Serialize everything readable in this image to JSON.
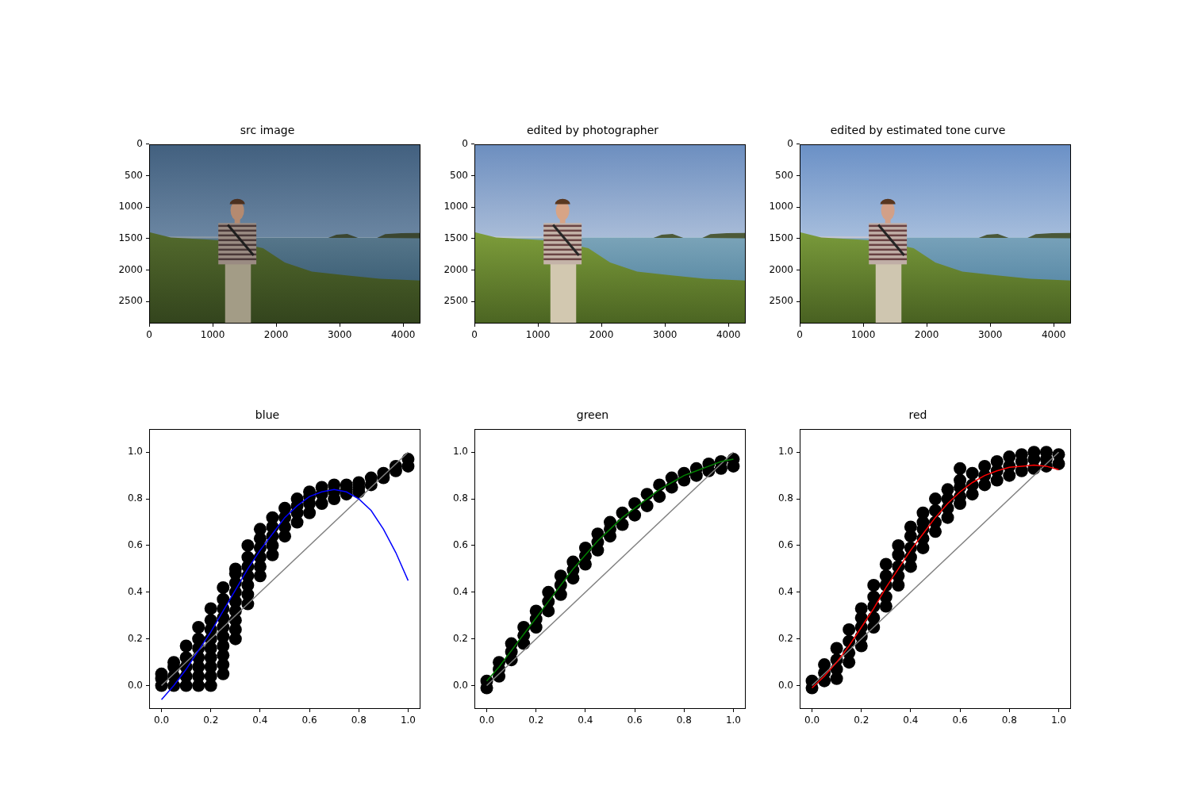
{
  "chart_data": [
    {
      "type": "image",
      "title": "src image",
      "xlim": [
        0,
        4272
      ],
      "ylim": [
        2848,
        0
      ],
      "xticks": [
        0,
        1000,
        2000,
        3000,
        4000
      ],
      "yticks": [
        0,
        500,
        1000,
        1500,
        2000,
        2500
      ],
      "grid": false
    },
    {
      "type": "image",
      "title": "edited by photographer",
      "xlim": [
        0,
        4272
      ],
      "ylim": [
        2848,
        0
      ],
      "xticks": [
        0,
        1000,
        2000,
        3000,
        4000
      ],
      "yticks": [
        0,
        500,
        1000,
        1500,
        2000,
        2500
      ],
      "grid": false
    },
    {
      "type": "image",
      "title": "edited by estimated tone curve",
      "xlim": [
        0,
        4272
      ],
      "ylim": [
        2848,
        0
      ],
      "xticks": [
        0,
        1000,
        2000,
        3000,
        4000
      ],
      "yticks": [
        0,
        500,
        1000,
        1500,
        2000,
        2500
      ],
      "grid": false
    },
    {
      "type": "scatter",
      "title": "blue",
      "xlim": [
        -0.05,
        1.05
      ],
      "ylim": [
        -0.1,
        1.1
      ],
      "xticks": [
        {
          "value": 0,
          "label": "0.0"
        },
        0.2,
        0.4,
        0.6,
        0.8,
        {
          "value": 1,
          "label": "1.0"
        }
      ],
      "yticks": [
        {
          "value": 0,
          "label": "0.0"
        },
        0.2,
        0.4,
        0.6,
        0.8,
        {
          "value": 1,
          "label": "1.0"
        }
      ],
      "grid": false,
      "series": [
        {
          "type": "line",
          "color": "#0000ff",
          "line_style": "solid",
          "x": [
            0,
            0.05,
            0.1,
            0.15,
            0.2,
            0.25,
            0.3,
            0.35,
            0.4,
            0.45,
            0.5,
            0.55,
            0.6,
            0.65,
            0.7,
            0.75,
            0.8,
            0.85,
            0.9,
            0.95,
            1
          ],
          "values": [
            -0.06,
            0.0,
            0.07,
            0.15,
            0.23,
            0.32,
            0.41,
            0.5,
            0.58,
            0.65,
            0.72,
            0.77,
            0.81,
            0.83,
            0.84,
            0.83,
            0.8,
            0.75,
            0.67,
            0.57,
            0.45
          ]
        },
        {
          "type": "line",
          "color": "#808080",
          "line_style": "solid",
          "x": [
            0,
            1
          ],
          "values": [
            0,
            1
          ]
        },
        {
          "type": "scatter",
          "color": "#000000",
          "marker": "circle",
          "x": [
            0,
            0,
            0,
            0.05,
            0.05,
            0.05,
            0.05,
            0.1,
            0.1,
            0.1,
            0.1,
            0.1,
            0.15,
            0.15,
            0.15,
            0.15,
            0.15,
            0.15,
            0.15,
            0.2,
            0.2,
            0.2,
            0.2,
            0.2,
            0.2,
            0.2,
            0.2,
            0.2,
            0.25,
            0.25,
            0.25,
            0.25,
            0.25,
            0.25,
            0.25,
            0.25,
            0.25,
            0.25,
            0.3,
            0.3,
            0.3,
            0.3,
            0.3,
            0.3,
            0.3,
            0.3,
            0.3,
            0.35,
            0.35,
            0.35,
            0.35,
            0.35,
            0.35,
            0.35,
            0.4,
            0.4,
            0.4,
            0.4,
            0.4,
            0.4,
            0.45,
            0.45,
            0.45,
            0.45,
            0.45,
            0.5,
            0.5,
            0.5,
            0.5,
            0.55,
            0.55,
            0.55,
            0.55,
            0.6,
            0.6,
            0.6,
            0.6,
            0.65,
            0.65,
            0.65,
            0.7,
            0.7,
            0.7,
            0.75,
            0.75,
            0.75,
            0.8,
            0.8,
            0.8,
            0.85,
            0.85,
            0.9,
            0.9,
            0.95,
            0.95,
            1,
            1
          ],
          "values": [
            0,
            0.03,
            0.05,
            0,
            0.04,
            0.08,
            0.1,
            0,
            0.04,
            0.08,
            0.12,
            0.17,
            0,
            0.04,
            0.08,
            0.12,
            0.16,
            0.2,
            0.25,
            0,
            0.04,
            0.08,
            0.12,
            0.16,
            0.2,
            0.24,
            0.28,
            0.33,
            0.05,
            0.09,
            0.13,
            0.17,
            0.21,
            0.25,
            0.29,
            0.33,
            0.37,
            0.42,
            0.2,
            0.24,
            0.28,
            0.32,
            0.36,
            0.4,
            0.44,
            0.48,
            0.5,
            0.35,
            0.39,
            0.43,
            0.47,
            0.51,
            0.55,
            0.6,
            0.47,
            0.51,
            0.55,
            0.59,
            0.63,
            0.67,
            0.56,
            0.6,
            0.64,
            0.68,
            0.72,
            0.64,
            0.68,
            0.72,
            0.76,
            0.7,
            0.74,
            0.77,
            0.8,
            0.74,
            0.78,
            0.81,
            0.83,
            0.78,
            0.82,
            0.85,
            0.8,
            0.83,
            0.86,
            0.82,
            0.84,
            0.86,
            0.83,
            0.85,
            0.87,
            0.86,
            0.89,
            0.89,
            0.91,
            0.92,
            0.94,
            0.94,
            0.97
          ]
        }
      ]
    },
    {
      "type": "scatter",
      "title": "green",
      "xlim": [
        -0.05,
        1.05
      ],
      "ylim": [
        -0.1,
        1.1
      ],
      "xticks": [
        {
          "value": 0,
          "label": "0.0"
        },
        0.2,
        0.4,
        0.6,
        0.8,
        {
          "value": 1,
          "label": "1.0"
        }
      ],
      "yticks": [
        {
          "value": 0,
          "label": "0.0"
        },
        0.2,
        0.4,
        0.6,
        0.8,
        {
          "value": 1,
          "label": "1.0"
        }
      ],
      "grid": false,
      "series": [
        {
          "type": "line",
          "color": "#008000",
          "line_style": "solid",
          "x": [
            0,
            0.05,
            0.1,
            0.15,
            0.2,
            0.25,
            0.3,
            0.35,
            0.4,
            0.45,
            0.5,
            0.55,
            0.6,
            0.65,
            0.7,
            0.75,
            0.8,
            0.85,
            0.9,
            0.95,
            1
          ],
          "values": [
            0.02,
            0.08,
            0.15,
            0.22,
            0.29,
            0.36,
            0.43,
            0.5,
            0.56,
            0.62,
            0.67,
            0.72,
            0.76,
            0.8,
            0.84,
            0.87,
            0.9,
            0.92,
            0.94,
            0.96,
            0.97
          ]
        },
        {
          "type": "line",
          "color": "#808080",
          "line_style": "solid",
          "x": [
            0,
            1
          ],
          "values": [
            0,
            1
          ]
        },
        {
          "type": "scatter",
          "color": "#000000",
          "marker": "circle",
          "x": [
            0,
            0,
            0.05,
            0.05,
            0.05,
            0.1,
            0.1,
            0.1,
            0.15,
            0.15,
            0.15,
            0.2,
            0.2,
            0.2,
            0.25,
            0.25,
            0.25,
            0.3,
            0.3,
            0.3,
            0.35,
            0.35,
            0.35,
            0.4,
            0.4,
            0.4,
            0.45,
            0.45,
            0.45,
            0.5,
            0.5,
            0.5,
            0.55,
            0.55,
            0.6,
            0.6,
            0.65,
            0.65,
            0.7,
            0.7,
            0.75,
            0.75,
            0.8,
            0.8,
            0.85,
            0.85,
            0.9,
            0.9,
            0.95,
            0.95,
            1,
            1
          ],
          "values": [
            -0.01,
            0.02,
            0.04,
            0.07,
            0.1,
            0.11,
            0.145,
            0.18,
            0.18,
            0.215,
            0.25,
            0.25,
            0.285,
            0.32,
            0.32,
            0.36,
            0.4,
            0.39,
            0.43,
            0.47,
            0.46,
            0.495,
            0.53,
            0.52,
            0.555,
            0.59,
            0.58,
            0.615,
            0.65,
            0.64,
            0.67,
            0.7,
            0.69,
            0.74,
            0.73,
            0.78,
            0.77,
            0.82,
            0.81,
            0.86,
            0.85,
            0.89,
            0.88,
            0.91,
            0.9,
            0.93,
            0.92,
            0.95,
            0.93,
            0.96,
            0.94,
            0.97
          ]
        }
      ]
    },
    {
      "type": "scatter",
      "title": "red",
      "xlim": [
        -0.05,
        1.05
      ],
      "ylim": [
        -0.1,
        1.1
      ],
      "xticks": [
        {
          "value": 0,
          "label": "0.0"
        },
        0.2,
        0.4,
        0.6,
        0.8,
        {
          "value": 1,
          "label": "1.0"
        }
      ],
      "yticks": [
        {
          "value": 0,
          "label": "0.0"
        },
        0.2,
        0.4,
        0.6,
        0.8,
        {
          "value": 1,
          "label": "1.0"
        }
      ],
      "grid": false,
      "series": [
        {
          "type": "line",
          "color": "#ff0000",
          "line_style": "solid",
          "x": [
            0,
            0.05,
            0.1,
            0.15,
            0.2,
            0.25,
            0.3,
            0.35,
            0.4,
            0.45,
            0.5,
            0.55,
            0.6,
            0.65,
            0.7,
            0.75,
            0.8,
            0.85,
            0.9,
            0.95,
            1
          ],
          "values": [
            -0.01,
            0.04,
            0.1,
            0.17,
            0.25,
            0.33,
            0.42,
            0.5,
            0.58,
            0.65,
            0.72,
            0.78,
            0.83,
            0.87,
            0.9,
            0.92,
            0.935,
            0.94,
            0.945,
            0.94,
            0.925
          ]
        },
        {
          "type": "line",
          "color": "#808080",
          "line_style": "solid",
          "x": [
            0,
            1
          ],
          "values": [
            0,
            1
          ]
        },
        {
          "type": "scatter",
          "color": "#000000",
          "marker": "circle",
          "x": [
            0,
            0,
            0.05,
            0.05,
            0.05,
            0.1,
            0.1,
            0.1,
            0.1,
            0.15,
            0.15,
            0.15,
            0.15,
            0.2,
            0.2,
            0.2,
            0.2,
            0.2,
            0.25,
            0.25,
            0.25,
            0.25,
            0.25,
            0.3,
            0.3,
            0.3,
            0.3,
            0.3,
            0.35,
            0.35,
            0.35,
            0.35,
            0.35,
            0.4,
            0.4,
            0.4,
            0.4,
            0.4,
            0.45,
            0.45,
            0.45,
            0.45,
            0.45,
            0.5,
            0.5,
            0.5,
            0.5,
            0.55,
            0.55,
            0.55,
            0.55,
            0.6,
            0.6,
            0.6,
            0.6,
            0.6,
            0.65,
            0.65,
            0.65,
            0.7,
            0.7,
            0.7,
            0.75,
            0.75,
            0.75,
            0.8,
            0.8,
            0.8,
            0.85,
            0.85,
            0.85,
            0.9,
            0.9,
            0.9,
            0.95,
            0.95,
            0.95,
            1,
            1
          ],
          "values": [
            -0.01,
            0.02,
            0.02,
            0.055,
            0.09,
            0.03,
            0.07,
            0.11,
            0.16,
            0.1,
            0.14,
            0.19,
            0.24,
            0.17,
            0.21,
            0.25,
            0.29,
            0.33,
            0.25,
            0.29,
            0.34,
            0.38,
            0.43,
            0.34,
            0.38,
            0.43,
            0.47,
            0.52,
            0.43,
            0.47,
            0.51,
            0.56,
            0.6,
            0.51,
            0.55,
            0.59,
            0.64,
            0.68,
            0.59,
            0.63,
            0.67,
            0.7,
            0.74,
            0.66,
            0.7,
            0.75,
            0.8,
            0.72,
            0.76,
            0.8,
            0.84,
            0.78,
            0.81,
            0.85,
            0.88,
            0.93,
            0.82,
            0.86,
            0.91,
            0.86,
            0.9,
            0.94,
            0.88,
            0.92,
            0.96,
            0.9,
            0.94,
            0.98,
            0.92,
            0.96,
            0.99,
            0.93,
            0.97,
            1.0,
            0.94,
            0.97,
            1.0,
            0.95,
            0.99
          ]
        }
      ]
    }
  ]
}
